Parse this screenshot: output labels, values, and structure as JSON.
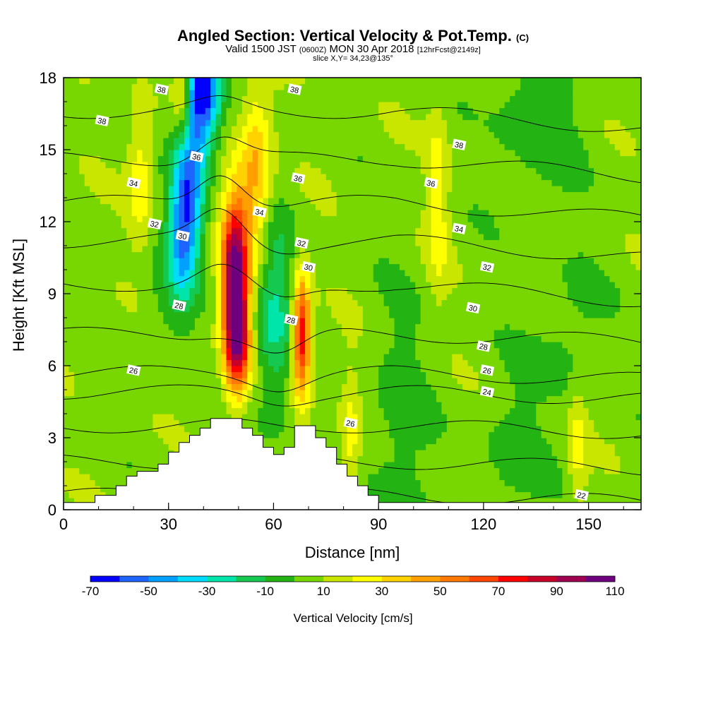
{
  "header": {
    "title": "Angled Section: Vertical Velocity & Pot.Temp.",
    "title_tag": "(C)",
    "valid_prefix": "Valid 1500 JST",
    "valid_utc": "(0600Z)",
    "valid_date": "MON 30 Apr 2018",
    "forecast": "[12hrFcst@2149z]",
    "slice": "slice X,Y= 34,23@135°"
  },
  "colors": {
    "levels": [
      -70,
      -60,
      -50,
      -40,
      -30,
      -20,
      -10,
      0,
      10,
      20,
      30,
      40,
      50,
      60,
      70,
      80,
      90,
      100,
      110
    ],
    "fills": [
      "#0000ff",
      "#1e64ff",
      "#00a0ff",
      "#00dcff",
      "#00e6aa",
      "#14c850",
      "#23b414",
      "#78d700",
      "#c8e600",
      "#ffff00",
      "#ffd200",
      "#ffa000",
      "#ff7800",
      "#ff4600",
      "#ff0000",
      "#c80028",
      "#a00050",
      "#6e0080"
    ]
  },
  "chart_data": {
    "type": "contour",
    "xlabel": "Distance [nm]",
    "ylabel": "Height [Kft MSL]",
    "xlim": [
      0,
      165
    ],
    "ylim": [
      0,
      18
    ],
    "xticks": [
      0,
      30,
      60,
      90,
      120,
      150
    ],
    "yticks": [
      0,
      3,
      6,
      9,
      12,
      15,
      18
    ],
    "colorbar": {
      "label": "Vertical Velocity [cm/s]",
      "tick_labels": [
        "-70",
        "-50",
        "-30",
        "-10",
        "10",
        "30",
        "50",
        "70",
        "90",
        "110"
      ]
    },
    "fill_features": [
      {
        "x": 49,
        "y": 9.5,
        "sx": 2.6,
        "sy": 2.4,
        "v": 108
      },
      {
        "x": 50,
        "y": 6.8,
        "sx": 2.4,
        "sy": 1.4,
        "v": 50
      },
      {
        "x": 68,
        "y": 7.2,
        "sx": 1.8,
        "sy": 1.8,
        "v": 78
      },
      {
        "x": 55,
        "y": 13.8,
        "sx": 3.2,
        "sy": 2.6,
        "v": 38
      },
      {
        "x": 40,
        "y": 17.5,
        "sx": 3.2,
        "sy": 1.6,
        "v": -72
      },
      {
        "x": 36,
        "y": 14.0,
        "sx": 3.2,
        "sy": 2.2,
        "v": -52
      },
      {
        "x": 34,
        "y": 11.2,
        "sx": 3.0,
        "sy": 1.8,
        "v": -40
      },
      {
        "x": 60,
        "y": 8.2,
        "sx": 4.0,
        "sy": 3.0,
        "v": -28
      },
      {
        "x": 34,
        "y": 17.2,
        "sx": 1.8,
        "sy": 1.4,
        "v": 30
      },
      {
        "x": 22,
        "y": 14.0,
        "sx": 2.6,
        "sy": 2.2,
        "v": 22
      },
      {
        "x": 107,
        "y": 13.0,
        "sx": 2.2,
        "sy": 2.8,
        "v": 20
      },
      {
        "x": 82,
        "y": 2.6,
        "sx": 2.0,
        "sy": 2.2,
        "v": 18
      },
      {
        "x": 147,
        "y": 2.6,
        "sx": 2.0,
        "sy": 1.8,
        "v": 18
      },
      {
        "x": 135,
        "y": 16.5,
        "sx": 10.0,
        "sy": 2.6,
        "v": -12
      },
      {
        "x": 96,
        "y": 3.0,
        "sx": 6.0,
        "sy": 4.0,
        "v": -12
      },
      {
        "x": 128,
        "y": 2.0,
        "sx": 7.0,
        "sy": 2.8,
        "v": -10
      },
      {
        "x": 145,
        "y": 7.2,
        "sx": 7.0,
        "sy": 2.2,
        "v": -10
      },
      {
        "x": 28,
        "y": 8.5,
        "sx": 5.0,
        "sy": 2.0,
        "v": -8
      }
    ],
    "theta_levels": [
      {
        "y0": 0.6,
        "label": ""
      },
      {
        "y0": 2.0,
        "label": ""
      },
      {
        "y0": 3.5,
        "label": ""
      },
      {
        "y0": 4.9,
        "label": "24"
      },
      {
        "y0": 5.7,
        "label": "26"
      },
      {
        "y0": 7.3,
        "label": "28"
      },
      {
        "y0": 9.4,
        "label": "30"
      },
      {
        "y0": 11.2,
        "label": "32"
      },
      {
        "y0": 12.8,
        "label": "34"
      },
      {
        "y0": 14.6,
        "label": "36"
      },
      {
        "y0": 16.6,
        "label": "38"
      }
    ],
    "contour_labels": [
      {
        "x": 28,
        "y": 17.5,
        "text": "38"
      },
      {
        "x": 11,
        "y": 16.2,
        "text": "38"
      },
      {
        "x": 66,
        "y": 17.5,
        "text": "38"
      },
      {
        "x": 113,
        "y": 15.2,
        "text": "38"
      },
      {
        "x": 38,
        "y": 14.7,
        "text": "36"
      },
      {
        "x": 67,
        "y": 13.8,
        "text": "36"
      },
      {
        "x": 105,
        "y": 13.6,
        "text": "36"
      },
      {
        "x": 20,
        "y": 13.6,
        "text": "34"
      },
      {
        "x": 56,
        "y": 12.4,
        "text": "34"
      },
      {
        "x": 113,
        "y": 11.7,
        "text": "34"
      },
      {
        "x": 26,
        "y": 11.9,
        "text": "32"
      },
      {
        "x": 68,
        "y": 11.1,
        "text": "32"
      },
      {
        "x": 121,
        "y": 10.1,
        "text": "32"
      },
      {
        "x": 34,
        "y": 11.4,
        "text": "30"
      },
      {
        "x": 70,
        "y": 10.1,
        "text": "30"
      },
      {
        "x": 117,
        "y": 8.4,
        "text": "30"
      },
      {
        "x": 33,
        "y": 8.5,
        "text": "28"
      },
      {
        "x": 65,
        "y": 7.9,
        "text": "28"
      },
      {
        "x": 120,
        "y": 6.8,
        "text": "28"
      },
      {
        "x": 20,
        "y": 5.8,
        "text": "26"
      },
      {
        "x": 82,
        "y": 3.6,
        "text": "26"
      },
      {
        "x": 121,
        "y": 5.8,
        "text": "26"
      },
      {
        "x": 121,
        "y": 4.9,
        "text": "24"
      },
      {
        "x": 148,
        "y": 0.6,
        "text": "22"
      }
    ],
    "terrain_steps": [
      [
        0,
        0.3
      ],
      [
        9,
        0.6
      ],
      [
        15,
        1.0
      ],
      [
        18,
        1.4
      ],
      [
        21,
        1.6
      ],
      [
        27,
        1.9
      ],
      [
        30,
        2.4
      ],
      [
        33,
        2.8
      ],
      [
        36,
        3.1
      ],
      [
        39,
        3.4
      ],
      [
        42,
        3.8
      ],
      [
        51,
        3.4
      ],
      [
        54,
        3.1
      ],
      [
        57,
        2.6
      ],
      [
        60,
        2.3
      ],
      [
        63,
        2.6
      ],
      [
        66,
        3.5
      ],
      [
        72,
        3.0
      ],
      [
        75,
        2.6
      ],
      [
        78,
        1.9
      ],
      [
        81,
        1.4
      ],
      [
        84,
        1.0
      ],
      [
        87,
        0.6
      ],
      [
        90,
        0.3
      ],
      [
        165,
        0.3
      ]
    ]
  }
}
